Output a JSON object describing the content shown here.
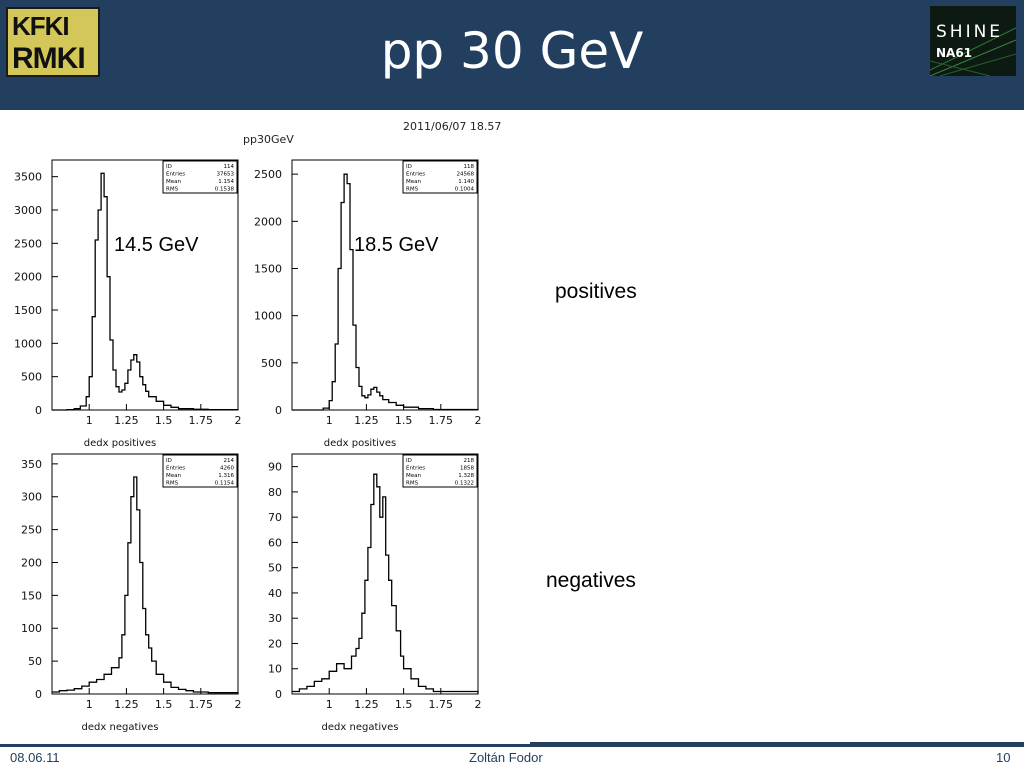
{
  "header": {
    "title": "pp 30 GeV"
  },
  "logos": {
    "left_line1": "KFKI",
    "left_line2": "RMKI",
    "right_line1": "SHINE",
    "right_line2": "NA61"
  },
  "figure": {
    "timestamp": "2011/06/07   18.57",
    "name": "pp30GeV"
  },
  "side_labels": {
    "positives": "positives",
    "negatives": "negatives"
  },
  "footer": {
    "date": "08.06.11",
    "author": "Zoltán Fodor",
    "page": "10"
  },
  "colors": {
    "header_bg": "#233f5f",
    "text": "#000000"
  },
  "chart_data": [
    {
      "type": "line",
      "xlabel": "dedx positives",
      "annotation": "14.5 GeV",
      "xlim": [
        0.75,
        2
      ],
      "ylim": [
        0,
        3750
      ],
      "xticks": [
        "1",
        "1.25",
        "1.5",
        "1.75",
        "2"
      ],
      "yticks": [
        "0",
        "500",
        "1000",
        "1500",
        "2000",
        "2500",
        "3000",
        "3500"
      ],
      "stats": [
        [
          "ID",
          "114"
        ],
        [
          "Entries",
          "37653"
        ],
        [
          "Mean",
          "1.154"
        ],
        [
          "RMS",
          "0.1538"
        ]
      ],
      "x": [
        0.75,
        0.8,
        0.85,
        0.9,
        0.94,
        0.98,
        1.0,
        1.02,
        1.04,
        1.06,
        1.08,
        1.1,
        1.12,
        1.14,
        1.16,
        1.18,
        1.2,
        1.22,
        1.24,
        1.26,
        1.28,
        1.3,
        1.32,
        1.34,
        1.36,
        1.38,
        1.4,
        1.45,
        1.5,
        1.55,
        1.6,
        1.7,
        1.8,
        2.0
      ],
      "values": [
        0,
        0,
        5,
        20,
        60,
        200,
        500,
        1400,
        2550,
        3000,
        3550,
        3200,
        2000,
        1050,
        600,
        350,
        270,
        300,
        400,
        600,
        750,
        830,
        720,
        500,
        380,
        280,
        200,
        130,
        70,
        40,
        20,
        10,
        5,
        0
      ]
    },
    {
      "type": "line",
      "xlabel": "dedx positives",
      "annotation": "18.5 GeV",
      "xlim": [
        0.75,
        2
      ],
      "ylim": [
        0,
        2650
      ],
      "xticks": [
        "1",
        "1.25",
        "1.5",
        "1.75",
        "2"
      ],
      "yticks": [
        "0",
        "500",
        "1000",
        "1500",
        "2000",
        "2500"
      ],
      "stats": [
        [
          "ID",
          "118"
        ],
        [
          "Entries",
          "24568"
        ],
        [
          "Mean",
          "1.140"
        ],
        [
          "RMS",
          "0.1004"
        ]
      ],
      "x": [
        0.75,
        0.9,
        0.96,
        1.0,
        1.02,
        1.04,
        1.06,
        1.08,
        1.1,
        1.12,
        1.14,
        1.16,
        1.18,
        1.2,
        1.22,
        1.24,
        1.26,
        1.28,
        1.3,
        1.32,
        1.34,
        1.36,
        1.4,
        1.45,
        1.5,
        1.6,
        1.7,
        2.0
      ],
      "values": [
        0,
        0,
        20,
        100,
        300,
        700,
        1500,
        2200,
        2500,
        2400,
        1700,
        900,
        450,
        250,
        150,
        130,
        160,
        220,
        240,
        190,
        150,
        110,
        80,
        50,
        30,
        15,
        5,
        0
      ]
    },
    {
      "type": "line",
      "xlabel": "dedx negatives",
      "xlim": [
        0.75,
        2
      ],
      "ylim": [
        0,
        365
      ],
      "xticks": [
        "1",
        "1.25",
        "1.5",
        "1.75",
        "2"
      ],
      "yticks": [
        "0",
        "50",
        "100",
        "150",
        "200",
        "250",
        "300",
        "350"
      ],
      "stats": [
        [
          "ID",
          "214"
        ],
        [
          "Entries",
          "4260"
        ],
        [
          "Mean",
          "1.316"
        ],
        [
          "RMS",
          "0.1154"
        ]
      ],
      "x": [
        0.75,
        0.8,
        0.85,
        0.9,
        0.95,
        1.0,
        1.05,
        1.1,
        1.15,
        1.2,
        1.22,
        1.24,
        1.26,
        1.28,
        1.3,
        1.32,
        1.34,
        1.36,
        1.38,
        1.4,
        1.42,
        1.45,
        1.5,
        1.55,
        1.6,
        1.65,
        1.7,
        1.8,
        2.0
      ],
      "values": [
        3,
        5,
        6,
        8,
        12,
        18,
        22,
        30,
        40,
        55,
        90,
        150,
        230,
        300,
        330,
        280,
        200,
        130,
        90,
        70,
        50,
        30,
        18,
        10,
        7,
        5,
        3,
        2,
        0
      ]
    },
    {
      "type": "line",
      "xlabel": "dedx negatives",
      "xlim": [
        0.75,
        2
      ],
      "ylim": [
        0,
        95
      ],
      "xticks": [
        "1",
        "1.25",
        "1.5",
        "1.75",
        "2"
      ],
      "yticks": [
        "0",
        "10",
        "20",
        "30",
        "40",
        "50",
        "60",
        "70",
        "80",
        "90"
      ],
      "stats": [
        [
          "ID",
          "218"
        ],
        [
          "Entries",
          "1858"
        ],
        [
          "Mean",
          "1.328"
        ],
        [
          "RMS",
          "0.1322"
        ]
      ],
      "x": [
        0.75,
        0.8,
        0.85,
        0.9,
        0.95,
        1.0,
        1.05,
        1.1,
        1.15,
        1.18,
        1.2,
        1.22,
        1.24,
        1.26,
        1.28,
        1.3,
        1.32,
        1.34,
        1.36,
        1.38,
        1.4,
        1.42,
        1.45,
        1.48,
        1.5,
        1.55,
        1.6,
        1.65,
        1.7,
        1.8,
        2.0
      ],
      "values": [
        1,
        2,
        3,
        5,
        6,
        9,
        12,
        10,
        15,
        18,
        22,
        32,
        45,
        58,
        75,
        87,
        82,
        70,
        78,
        55,
        45,
        35,
        25,
        15,
        10,
        6,
        3,
        2,
        1,
        1,
        0
      ]
    }
  ]
}
